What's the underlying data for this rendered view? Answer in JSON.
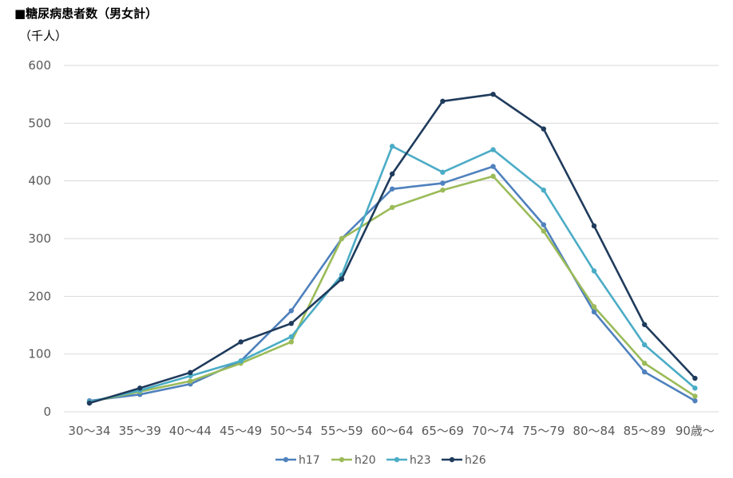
{
  "chart_data": {
    "type": "line",
    "title": "■糖尿病患者数（男女計）",
    "ylabel": "（千人）",
    "xlabel": "",
    "ylim": [
      0,
      600
    ],
    "yticks": [
      0,
      100,
      200,
      300,
      400,
      500,
      600
    ],
    "grid": true,
    "legend_position": "bottom",
    "categories": [
      "30～34",
      "35～39",
      "40～44",
      "45～49",
      "50～54",
      "55～59",
      "60～64",
      "65～69",
      "70～74",
      "75～79",
      "80～84",
      "85～89",
      "90歳～"
    ],
    "series": [
      {
        "name": "h17",
        "color": "#4f81bd",
        "values": [
          19,
          30,
          48,
          88,
          175,
          300,
          386,
          396,
          425,
          324,
          173,
          69,
          19
        ]
      },
      {
        "name": "h20",
        "color": "#9bbb59",
        "values": [
          17,
          35,
          53,
          84,
          121,
          300,
          354,
          384,
          408,
          313,
          182,
          84,
          27
        ]
      },
      {
        "name": "h23",
        "color": "#4bacc6",
        "values": [
          17,
          37,
          62,
          88,
          130,
          237,
          460,
          415,
          454,
          384,
          244,
          116,
          41
        ]
      },
      {
        "name": "h26",
        "color": "#1f3b5c",
        "values": [
          15,
          41,
          68,
          121,
          153,
          230,
          412,
          538,
          550,
          490,
          322,
          151,
          58
        ]
      }
    ]
  }
}
